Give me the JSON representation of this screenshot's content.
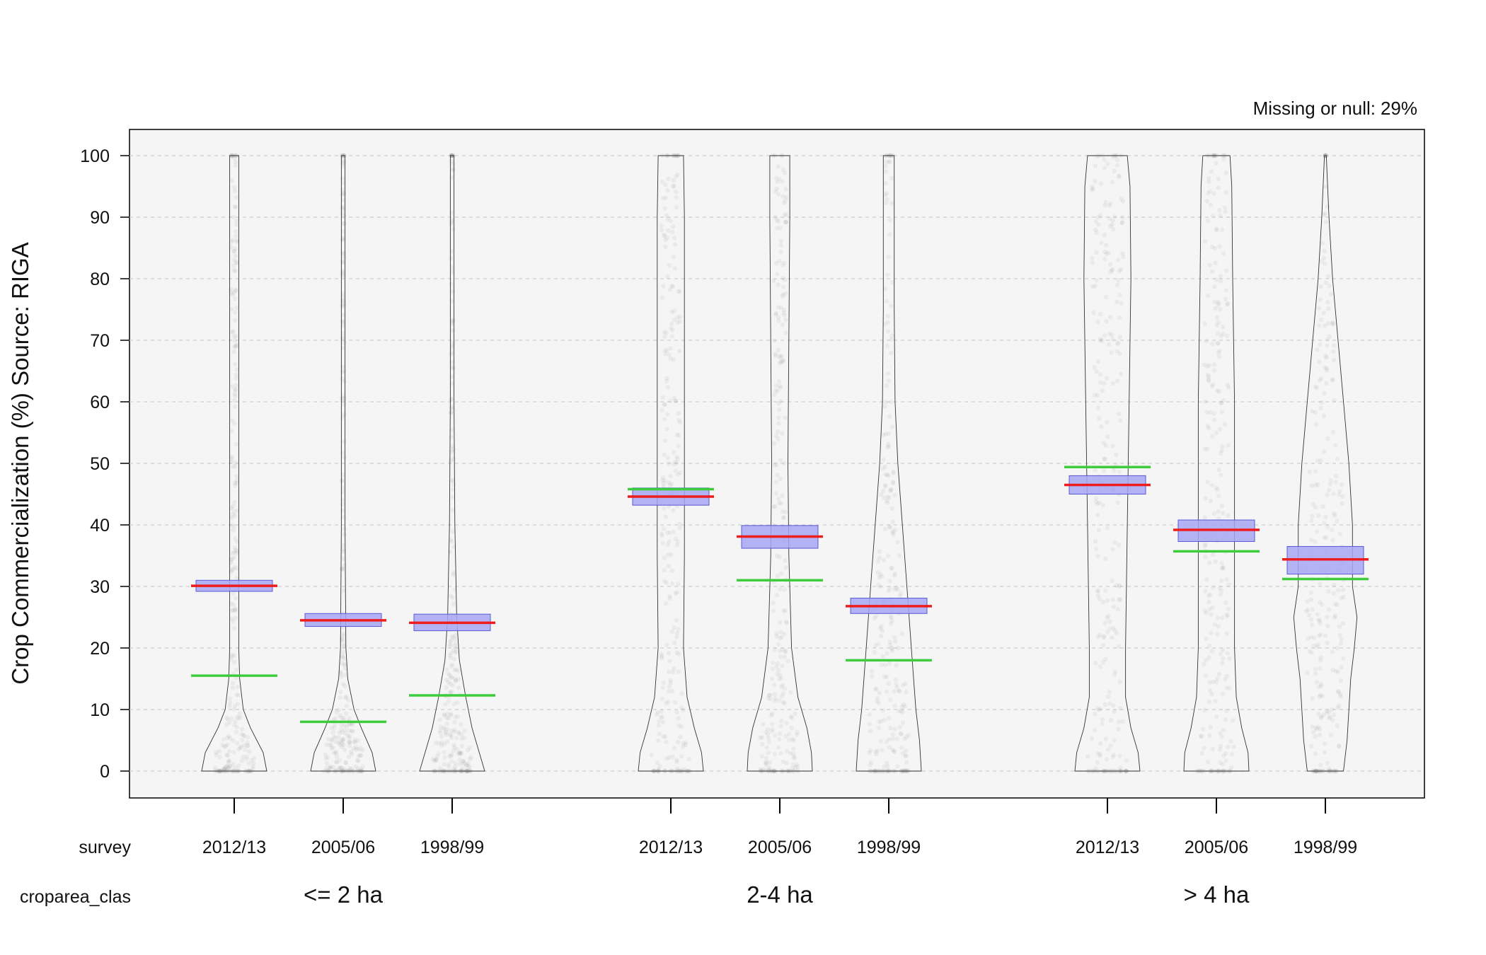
{
  "chart_data": {
    "type": "violin",
    "ylabel": "Crop Commercialization (%) Source: RIGA",
    "ylim": [
      -4,
      104
    ],
    "yticks": [
      0,
      10,
      20,
      30,
      40,
      50,
      60,
      70,
      80,
      90,
      100
    ],
    "grid": true,
    "missing_label": "Missing or null:",
    "missing_value": "29%",
    "row_labels": {
      "survey": "survey",
      "group": "croparea_clas"
    },
    "groups": [
      {
        "name": "<= 2 ha",
        "items": [
          {
            "survey": "2012/13",
            "mean": 30.1,
            "ci": [
              29.2,
              31.0
            ],
            "median": 15.5,
            "profile": [
              [
                0,
                0.36
              ],
              [
                3,
                0.32
              ],
              [
                7,
                0.18
              ],
              [
                10,
                0.1
              ],
              [
                15,
                0.06
              ],
              [
                20,
                0.05
              ],
              [
                40,
                0.05
              ],
              [
                60,
                0.05
              ],
              [
                80,
                0.05
              ],
              [
                100,
                0.05
              ]
            ]
          },
          {
            "survey": "2005/06",
            "mean": 24.5,
            "ci": [
              23.5,
              25.6
            ],
            "median": 8.0,
            "profile": [
              [
                0,
                0.36
              ],
              [
                3,
                0.32
              ],
              [
                7,
                0.2
              ],
              [
                10,
                0.12
              ],
              [
                15,
                0.05
              ],
              [
                20,
                0.03
              ],
              [
                40,
                0.02
              ],
              [
                60,
                0.02
              ],
              [
                80,
                0.02
              ],
              [
                100,
                0.02
              ]
            ]
          },
          {
            "survey": "1998/99",
            "mean": 24.1,
            "ci": [
              22.8,
              25.5
            ],
            "median": 12.3,
            "profile": [
              [
                0,
                0.36
              ],
              [
                3,
                0.3
              ],
              [
                7,
                0.22
              ],
              [
                12,
                0.15
              ],
              [
                18,
                0.08
              ],
              [
                25,
                0.05
              ],
              [
                40,
                0.03
              ],
              [
                60,
                0.02
              ],
              [
                80,
                0.02
              ],
              [
                100,
                0.02
              ]
            ]
          }
        ]
      },
      {
        "name": "2-4 ha",
        "items": [
          {
            "survey": "2012/13",
            "mean": 44.6,
            "ci": [
              43.2,
              46.0
            ],
            "median": 45.8,
            "profile": [
              [
                0,
                0.36
              ],
              [
                3,
                0.34
              ],
              [
                7,
                0.26
              ],
              [
                12,
                0.18
              ],
              [
                20,
                0.14
              ],
              [
                35,
                0.15
              ],
              [
                50,
                0.15
              ],
              [
                70,
                0.15
              ],
              [
                90,
                0.15
              ],
              [
                100,
                0.14
              ]
            ]
          },
          {
            "survey": "2005/06",
            "mean": 38.1,
            "ci": [
              36.2,
              39.9
            ],
            "median": 31.0,
            "profile": [
              [
                0,
                0.36
              ],
              [
                3,
                0.35
              ],
              [
                7,
                0.3
              ],
              [
                12,
                0.2
              ],
              [
                20,
                0.13
              ],
              [
                35,
                0.1
              ],
              [
                50,
                0.09
              ],
              [
                70,
                0.1
              ],
              [
                90,
                0.11
              ],
              [
                100,
                0.11
              ]
            ]
          },
          {
            "survey": "1998/99",
            "mean": 26.8,
            "ci": [
              25.6,
              28.1
            ],
            "median": 18.0,
            "profile": [
              [
                0,
                0.36
              ],
              [
                5,
                0.34
              ],
              [
                10,
                0.3
              ],
              [
                20,
                0.25
              ],
              [
                30,
                0.2
              ],
              [
                40,
                0.15
              ],
              [
                50,
                0.1
              ],
              [
                60,
                0.07
              ],
              [
                75,
                0.06
              ],
              [
                90,
                0.06
              ],
              [
                100,
                0.06
              ]
            ]
          }
        ]
      },
      {
        "name": "> 4 ha",
        "items": [
          {
            "survey": "2012/13",
            "mean": 46.5,
            "ci": [
              45.0,
              48.0
            ],
            "median": 49.4,
            "profile": [
              [
                0,
                0.36
              ],
              [
                3,
                0.34
              ],
              [
                7,
                0.26
              ],
              [
                12,
                0.2
              ],
              [
                20,
                0.2
              ],
              [
                40,
                0.22
              ],
              [
                60,
                0.24
              ],
              [
                80,
                0.26
              ],
              [
                95,
                0.25
              ],
              [
                100,
                0.22
              ]
            ]
          },
          {
            "survey": "2005/06",
            "mean": 39.2,
            "ci": [
              37.3,
              40.8
            ],
            "median": 35.7,
            "profile": [
              [
                0,
                0.36
              ],
              [
                3,
                0.35
              ],
              [
                7,
                0.28
              ],
              [
                12,
                0.22
              ],
              [
                20,
                0.2
              ],
              [
                40,
                0.2
              ],
              [
                60,
                0.2
              ],
              [
                80,
                0.18
              ],
              [
                95,
                0.17
              ],
              [
                100,
                0.15
              ]
            ]
          },
          {
            "survey": "1998/99",
            "mean": 34.4,
            "ci": [
              32.0,
              36.5
            ],
            "median": 31.2,
            "profile": [
              [
                0,
                0.2
              ],
              [
                5,
                0.24
              ],
              [
                15,
                0.28
              ],
              [
                20,
                0.32
              ],
              [
                25,
                0.35
              ],
              [
                30,
                0.3
              ],
              [
                40,
                0.3
              ],
              [
                50,
                0.26
              ],
              [
                60,
                0.2
              ],
              [
                70,
                0.14
              ],
              [
                80,
                0.08
              ],
              [
                90,
                0.04
              ],
              [
                100,
                0.01
              ]
            ]
          }
        ]
      }
    ]
  },
  "colors": {
    "plot_background": "#f5f5f5",
    "grid": "#cfcfcf",
    "violin_stroke": "#333333",
    "points": "#9a9a9a",
    "ci_fill": "#a6a6f5",
    "ci_stroke": "#5a5ad6",
    "mean_line": "#ee1c1c",
    "median_line": "#3ccc3c"
  }
}
